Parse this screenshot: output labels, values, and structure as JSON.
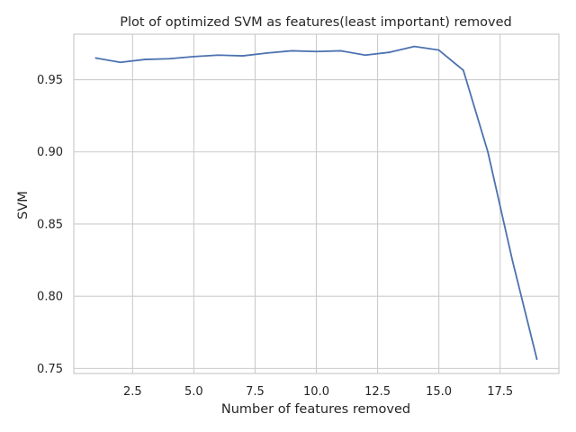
{
  "colors": {
    "series": "#4c72b0",
    "grid": "#cccccc",
    "text": "#262626",
    "background": "#ffffff"
  },
  "chart_data": {
    "type": "line",
    "title": "Plot of optimized SVM as features(least important) removed",
    "xlabel": "Number of features removed",
    "ylabel": "SVM",
    "xlim": [
      0.1,
      19.9
    ],
    "ylim": [
      0.7465,
      0.9815
    ],
    "xticks": [
      2.5,
      5.0,
      7.5,
      10.0,
      12.5,
      15.0,
      17.5
    ],
    "xtick_labels": [
      "2.5",
      "5.0",
      "7.5",
      "10.0",
      "12.5",
      "15.0",
      "17.5"
    ],
    "yticks": [
      0.75,
      0.8,
      0.85,
      0.9,
      0.95
    ],
    "ytick_labels": [
      "0.75",
      "0.80",
      "0.85",
      "0.90",
      "0.95"
    ],
    "grid": true,
    "series": [
      {
        "x": [
          1,
          2,
          3,
          4,
          5,
          6,
          7,
          8,
          9,
          10,
          11,
          12,
          13,
          14,
          15,
          16,
          17,
          18,
          19
        ],
        "values": [
          0.965,
          0.962,
          0.964,
          0.9645,
          0.966,
          0.967,
          0.9665,
          0.9685,
          0.97,
          0.9695,
          0.97,
          0.967,
          0.969,
          0.973,
          0.9705,
          0.9565,
          0.9,
          0.825,
          0.7565
        ]
      }
    ]
  }
}
